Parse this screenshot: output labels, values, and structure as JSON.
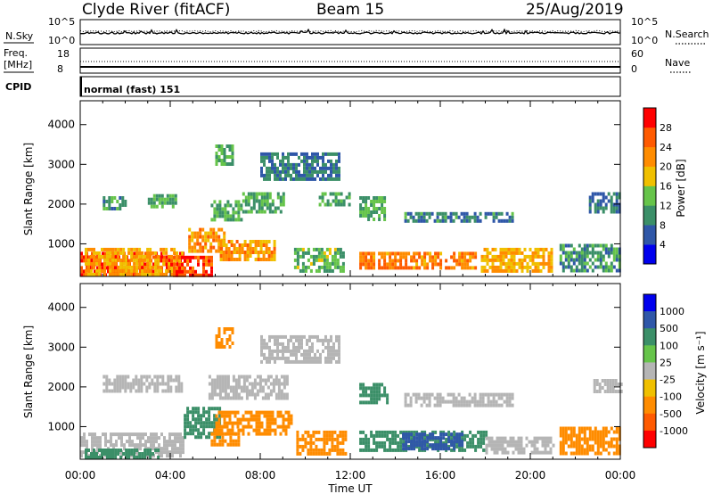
{
  "header": {
    "station": "Clyde River (fitACF)",
    "beam": "Beam 15",
    "date": "25/Aug/2019"
  },
  "status_panel": {
    "nsky_label": "N.Sky",
    "nsky_ticks": [
      "10^5",
      "10^0"
    ],
    "nsearch_label": "N.Search",
    "nsearch_ticks": [
      "10^5",
      "10^0"
    ],
    "freq_label_1": "Freq.",
    "freq_label_2": "[MHz]",
    "freq_ticks": [
      "18",
      "8"
    ],
    "nave_label": "Nave",
    "nave_ticks": [
      "60",
      "0"
    ],
    "cpid_label": "CPID",
    "cpid_value": "normal (fast) 151"
  },
  "colors": {
    "power": [
      "#0000ee",
      "#2f57a8",
      "#3b8f68",
      "#66c44a",
      "#f0c000",
      "#ff8c00",
      "#ff5a00",
      "#ff0000"
    ],
    "velocity_neg": [
      "#b5b5b5",
      "#f0c000",
      "#ff8c00",
      "#ff5a00",
      "#ff0000"
    ],
    "velocity_pos": [
      "#b5b5b5",
      "#66c44a",
      "#3b8f68",
      "#2f57a8",
      "#0000ee"
    ],
    "ground_scatter": "#b5b5b5"
  },
  "chart_data": [
    {
      "type": "heatmap",
      "name": "power",
      "xlabel": "",
      "ylabel": "Slant Range [km]",
      "x_range": [
        "00:00",
        "24:00"
      ],
      "ylim": [
        180,
        4600
      ],
      "y_ticks": [
        "1000",
        "2000",
        "3000",
        "4000"
      ],
      "colorbar_label": "Power [dB]",
      "colorbar_ticks": [
        "4",
        "8",
        "12",
        "16",
        "20",
        "24",
        "28"
      ],
      "colorbar_range": [
        0,
        32
      ],
      "regions": [
        {
          "t0": 0.0,
          "t1": 4.6,
          "r0": 200,
          "r1": 800,
          "v": 28
        },
        {
          "t0": 0.2,
          "t1": 4.5,
          "r0": 250,
          "r1": 900,
          "v": 20
        },
        {
          "t0": 4.0,
          "t1": 5.8,
          "r0": 200,
          "r1": 700,
          "v": 27
        },
        {
          "t0": 4.8,
          "t1": 6.4,
          "r0": 800,
          "r1": 1400,
          "v": 22
        },
        {
          "t0": 6.2,
          "t1": 8.6,
          "r0": 650,
          "r1": 1100,
          "v": 21
        },
        {
          "t0": 5.8,
          "t1": 7.2,
          "r0": 1600,
          "r1": 2100,
          "v": 12
        },
        {
          "t0": 7.2,
          "t1": 9.1,
          "r0": 1800,
          "r1": 2300,
          "v": 12
        },
        {
          "t0": 3.0,
          "t1": 4.3,
          "r0": 1950,
          "r1": 2250,
          "v": 12
        },
        {
          "t0": 1.0,
          "t1": 2.0,
          "r0": 1900,
          "r1": 2200,
          "v": 10
        },
        {
          "t0": 9.5,
          "t1": 11.7,
          "r0": 350,
          "r1": 900,
          "v": 13
        },
        {
          "t0": 12.4,
          "t1": 17.6,
          "r0": 400,
          "r1": 800,
          "v": 23
        },
        {
          "t0": 17.8,
          "t1": 21.0,
          "r0": 350,
          "r1": 900,
          "v": 20
        },
        {
          "t0": 14.4,
          "t1": 19.2,
          "r0": 1600,
          "r1": 1800,
          "v": 9
        },
        {
          "t0": 12.4,
          "t1": 13.5,
          "r0": 1600,
          "r1": 2200,
          "v": 12
        },
        {
          "t0": 10.6,
          "t1": 12.0,
          "r0": 2000,
          "r1": 2300,
          "v": 12
        },
        {
          "t0": 21.3,
          "t1": 24.0,
          "r0": 300,
          "r1": 1000,
          "v": 10
        },
        {
          "t0": 22.6,
          "t1": 24.0,
          "r0": 1800,
          "r1": 2300,
          "v": 8
        },
        {
          "t0": 6.0,
          "t1": 6.8,
          "r0": 3000,
          "r1": 3500,
          "v": 12
        },
        {
          "t0": 8.0,
          "t1": 11.5,
          "r0": 2600,
          "r1": 3300,
          "v": 8
        }
      ]
    },
    {
      "type": "heatmap",
      "name": "velocity",
      "xlabel": "Time UT",
      "ylabel": "Slant Range [km]",
      "x_ticks": [
        "00:00",
        "04:00",
        "08:00",
        "12:00",
        "16:00",
        "20:00",
        "00:00"
      ],
      "ylim": [
        180,
        4600
      ],
      "y_ticks": [
        "1000",
        "2000",
        "3000",
        "4000"
      ],
      "colorbar_label": "Velocity [m s⁻¹]",
      "colorbar_ticks": [
        "1000",
        "500",
        "100",
        "25",
        "-25",
        "-100",
        "-500",
        "-1000"
      ],
      "regions": [
        {
          "t0": 0.0,
          "t1": 4.6,
          "r0": 300,
          "r1": 850,
          "v": "gs"
        },
        {
          "t0": 0.2,
          "t1": 3.5,
          "r0": 200,
          "r1": 450,
          "v": 150
        },
        {
          "t0": 4.6,
          "t1": 6.2,
          "r0": 700,
          "r1": 1500,
          "v": 180
        },
        {
          "t0": 6.0,
          "t1": 9.4,
          "r0": 800,
          "r1": 1400,
          "v": -150
        },
        {
          "t0": 5.8,
          "t1": 7.0,
          "r0": 550,
          "r1": 950,
          "v": -250
        },
        {
          "t0": 9.6,
          "t1": 11.8,
          "r0": 300,
          "r1": 900,
          "v": -150
        },
        {
          "t0": 12.4,
          "t1": 18.0,
          "r0": 400,
          "r1": 900,
          "v": 200
        },
        {
          "t0": 14.3,
          "t1": 17.0,
          "r0": 450,
          "r1": 850,
          "v": 600
        },
        {
          "t0": 18.0,
          "t1": 21.0,
          "r0": 350,
          "r1": 750,
          "v": "gs"
        },
        {
          "t0": 14.4,
          "t1": 19.2,
          "r0": 1550,
          "r1": 1850,
          "v": "gs"
        },
        {
          "t0": 1.0,
          "t1": 4.5,
          "r0": 1900,
          "r1": 2300,
          "v": "gs"
        },
        {
          "t0": 5.7,
          "t1": 9.2,
          "r0": 1700,
          "r1": 2300,
          "v": "gs"
        },
        {
          "t0": 12.4,
          "t1": 13.6,
          "r0": 1600,
          "r1": 2100,
          "v": 150
        },
        {
          "t0": 21.3,
          "t1": 24.0,
          "r0": 300,
          "r1": 1000,
          "v": -150
        },
        {
          "t0": 22.8,
          "t1": 24.0,
          "r0": 1850,
          "r1": 2200,
          "v": "gs"
        },
        {
          "t0": 6.0,
          "t1": 6.8,
          "r0": 3000,
          "r1": 3500,
          "v": -150
        },
        {
          "t0": 8.0,
          "t1": 11.5,
          "r0": 2600,
          "r1": 3300,
          "v": "gs"
        }
      ]
    }
  ]
}
